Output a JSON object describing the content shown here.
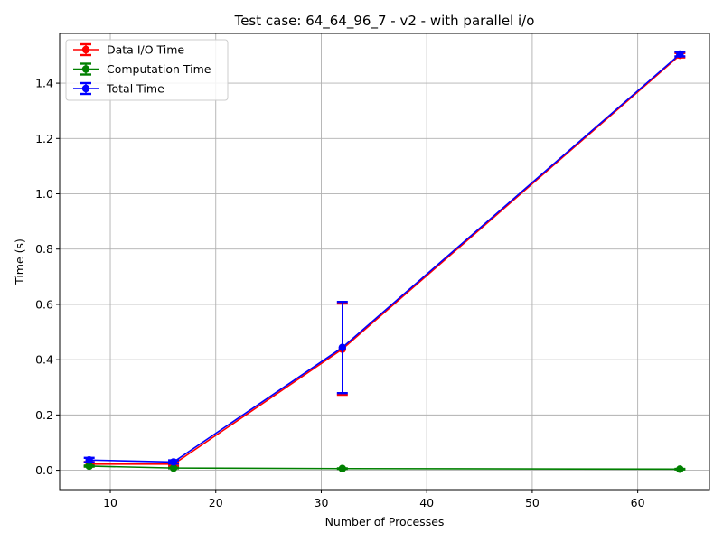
{
  "chart_data": {
    "type": "line",
    "title": "Test case: 64_64_96_7 - v2 - with parallel i/o",
    "xlabel": "Number of Processes",
    "ylabel": "Time (s)",
    "xlim": [
      5.2,
      66.8
    ],
    "ylim": [
      -0.07,
      1.58
    ],
    "xticks": [
      10,
      20,
      30,
      40,
      50,
      60
    ],
    "yticks": [
      0.0,
      0.2,
      0.4,
      0.6,
      0.8,
      1.0,
      1.2,
      1.4
    ],
    "ytick_labels": [
      "0.0",
      "0.2",
      "0.4",
      "0.6",
      "0.8",
      "1.0",
      "1.2",
      "1.4"
    ],
    "grid": true,
    "legend_position": "upper left",
    "x": [
      8,
      16,
      32,
      64
    ],
    "series": [
      {
        "name": "Data I/O Time",
        "color": "#ff0000",
        "values": [
          0.022,
          0.022,
          0.438,
          1.501
        ],
        "errors": [
          0.008,
          0.006,
          0.165,
          0.008
        ]
      },
      {
        "name": "Computation Time",
        "color": "#008000",
        "values": [
          0.015,
          0.008,
          0.006,
          0.004
        ],
        "errors": [
          0.002,
          0.001,
          0.001,
          0.001
        ]
      },
      {
        "name": "Total Time",
        "color": "#0000ff",
        "values": [
          0.037,
          0.03,
          0.444,
          1.505
        ],
        "errors": [
          0.008,
          0.006,
          0.165,
          0.008
        ]
      }
    ]
  }
}
